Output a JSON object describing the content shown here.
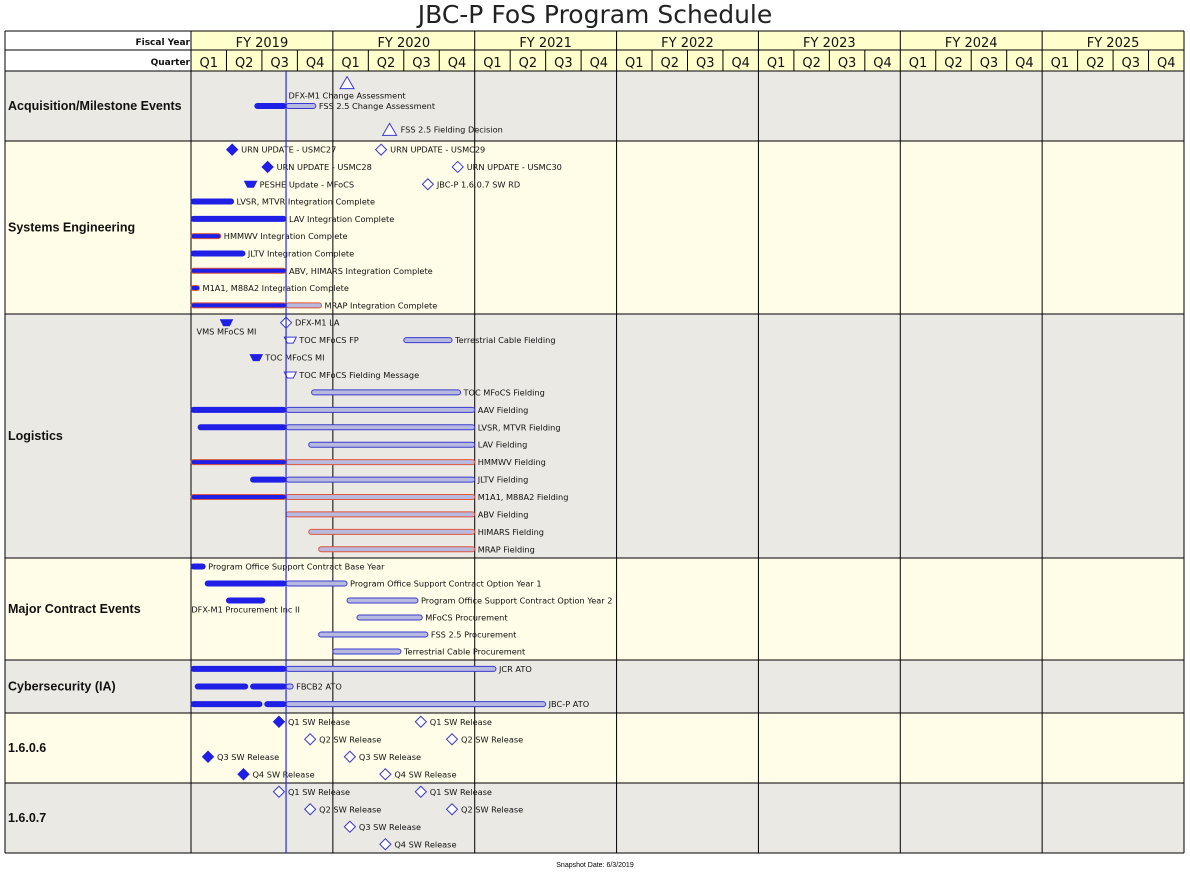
{
  "title": "JBC-P FoS Program Schedule",
  "header": {
    "fiscal_year_label": "Fiscal Year",
    "quarter_label": "Quarter",
    "fiscal_years": [
      "FY 2019",
      "FY 2020",
      "FY 2021",
      "FY 2022",
      "FY 2023",
      "FY 2024",
      "FY 2025"
    ],
    "quarters": [
      "Q1",
      "Q2",
      "Q3",
      "Q4"
    ]
  },
  "snapshot": "Snapshot Date: 6/3/2019",
  "colors": {
    "header_bg": "#ffffcc",
    "band_gray": "#ebe9e4",
    "band_cream": "#fffde8",
    "solid_blue": "#1f1fe6",
    "light_fill": "#b7b9df",
    "outline_blue": "#3a3ad0",
    "orange": "#e0563a",
    "today_line": "#2a2ad8"
  },
  "chart_data": {
    "type": "gantt",
    "time_axis": {
      "start": 2019.0,
      "end": 2026.0,
      "unit": "fiscal-year",
      "quarters_per_year": 4
    },
    "snapshot_date_fy": 2019.67,
    "sections": [
      {
        "name": "Acquisition/Milestone Events",
        "band": "gray",
        "rows": [
          {
            "label": "DFX-M1 Change Assessment",
            "items": [
              {
                "type": "tri-open",
                "at": 2020.1
              }
            ]
          },
          {
            "label": "FSS 2.5 Change Assessment",
            "items": [
              {
                "type": "bar",
                "segs": [
                  {
                    "from": 2019.45,
                    "to": 2019.67,
                    "style": "solid"
                  },
                  {
                    "from": 2019.67,
                    "to": 2019.88,
                    "style": "light"
                  }
                ]
              }
            ]
          },
          {
            "label": "FSS 2.5 Fielding Decision",
            "items": [
              {
                "type": "tri-open",
                "at": 2020.4
              }
            ]
          }
        ]
      },
      {
        "name": "Systems Engineering",
        "band": "cream",
        "rows": [
          {
            "items": [
              {
                "type": "diamond",
                "filled": true,
                "at": 2019.29,
                "label": "URN UPDATE - USMC27"
              },
              {
                "type": "diamond",
                "filled": false,
                "at": 2020.34,
                "label": "URN UPDATE - USMC29"
              }
            ]
          },
          {
            "items": [
              {
                "type": "diamond",
                "filled": true,
                "at": 2019.54,
                "label": "URN UPDATE - USMC28"
              },
              {
                "type": "diamond",
                "filled": false,
                "at": 2020.88,
                "label": "URN UPDATE - USMC30"
              }
            ]
          },
          {
            "items": [
              {
                "type": "trap",
                "filled": true,
                "at": 2019.42,
                "label": "PESHE Update - MFoCS"
              },
              {
                "type": "diamond",
                "filled": false,
                "at": 2020.67,
                "label": "JBC-P 1.6.0.7 SW RD"
              }
            ]
          },
          {
            "label": "LVSR, MTVR Integration Complete",
            "items": [
              {
                "type": "bar",
                "segs": [
                  {
                    "from": 2019.0,
                    "to": 2019.3,
                    "style": "solid"
                  }
                ]
              }
            ]
          },
          {
            "label": "LAV Integration Complete",
            "items": [
              {
                "type": "bar",
                "segs": [
                  {
                    "from": 2019.0,
                    "to": 2019.67,
                    "style": "solid"
                  }
                ]
              }
            ]
          },
          {
            "label": "HMMWV Integration Complete",
            "items": [
              {
                "type": "bar",
                "segs": [
                  {
                    "from": 2019.0,
                    "to": 2019.21,
                    "style": "solid-orange"
                  }
                ]
              }
            ]
          },
          {
            "label": "JLTV Integration Complete",
            "items": [
              {
                "type": "bar",
                "segs": [
                  {
                    "from": 2019.0,
                    "to": 2019.38,
                    "style": "solid"
                  }
                ]
              }
            ]
          },
          {
            "label": "ABV, HIMARS Integration Complete",
            "items": [
              {
                "type": "bar",
                "segs": [
                  {
                    "from": 2019.0,
                    "to": 2019.67,
                    "style": "solid-orange"
                  }
                ]
              }
            ]
          },
          {
            "label": "M1A1, M88A2 Integration Complete",
            "items": [
              {
                "type": "bar",
                "segs": [
                  {
                    "from": 2019.0,
                    "to": 2019.06,
                    "style": "solid-orange"
                  }
                ]
              }
            ]
          },
          {
            "label": "MRAP Integration Complete",
            "items": [
              {
                "type": "bar",
                "segs": [
                  {
                    "from": 2019.0,
                    "to": 2019.67,
                    "style": "solid-orange"
                  },
                  {
                    "from": 2019.67,
                    "to": 2019.92,
                    "style": "light-orange"
                  }
                ]
              }
            ]
          }
        ]
      },
      {
        "name": "Logistics",
        "band": "gray",
        "rows": [
          {
            "items": [
              {
                "type": "trap",
                "filled": true,
                "at": 2019.25,
                "label": "VMS MFoCS MI",
                "label_pos": "below"
              },
              {
                "type": "diamond",
                "filled": false,
                "at": 2019.67,
                "label": "DFX-M1 LA"
              }
            ]
          },
          {
            "items": [
              {
                "type": "trap",
                "filled": false,
                "at": 2019.7,
                "label": "TOC MFoCS FP"
              },
              {
                "type": "bar",
                "segs": [
                  {
                    "from": 2020.5,
                    "to": 2020.84,
                    "style": "light"
                  }
                ],
                "label": "Terrestrial Cable Fielding"
              }
            ]
          },
          {
            "items": [
              {
                "type": "trap",
                "filled": true,
                "at": 2019.46,
                "label": "TOC MFoCS MI"
              }
            ]
          },
          {
            "items": [
              {
                "type": "trap",
                "filled": false,
                "at": 2019.7,
                "label": "TOC MFoCS Fielding Message"
              }
            ]
          },
          {
            "label": "TOC MFoCS Fielding",
            "items": [
              {
                "type": "bar",
                "segs": [
                  {
                    "from": 2019.85,
                    "to": 2020.9,
                    "style": "light"
                  }
                ]
              }
            ]
          },
          {
            "label": "AAV Fielding",
            "items": [
              {
                "type": "bar",
                "segs": [
                  {
                    "from": 2019.0,
                    "to": 2019.67,
                    "style": "solid"
                  },
                  {
                    "from": 2019.67,
                    "to": 2021.0,
                    "style": "light"
                  }
                ]
              }
            ]
          },
          {
            "label": "LVSR, MTVR Fielding",
            "items": [
              {
                "type": "bar",
                "segs": [
                  {
                    "from": 2019.05,
                    "to": 2019.67,
                    "style": "solid"
                  },
                  {
                    "from": 2019.67,
                    "to": 2021.0,
                    "style": "light"
                  }
                ]
              }
            ]
          },
          {
            "label": "LAV Fielding",
            "items": [
              {
                "type": "bar",
                "segs": [
                  {
                    "from": 2019.83,
                    "to": 2021.0,
                    "style": "light"
                  }
                ]
              }
            ]
          },
          {
            "label": "HMMWV Fielding",
            "items": [
              {
                "type": "bar",
                "segs": [
                  {
                    "from": 2019.0,
                    "to": 2019.67,
                    "style": "solid-orange"
                  },
                  {
                    "from": 2019.67,
                    "to": 2021.0,
                    "style": "light-orange"
                  }
                ]
              }
            ]
          },
          {
            "label": "JLTV Fielding",
            "items": [
              {
                "type": "bar",
                "segs": [
                  {
                    "from": 2019.42,
                    "to": 2019.67,
                    "style": "solid"
                  },
                  {
                    "from": 2019.67,
                    "to": 2021.0,
                    "style": "light"
                  }
                ]
              }
            ]
          },
          {
            "label": "M1A1, M88A2 Fielding",
            "items": [
              {
                "type": "bar",
                "segs": [
                  {
                    "from": 2019.0,
                    "to": 2019.67,
                    "style": "solid-orange"
                  },
                  {
                    "from": 2019.67,
                    "to": 2021.0,
                    "style": "light-orange"
                  }
                ]
              }
            ]
          },
          {
            "label": "ABV Fielding",
            "items": [
              {
                "type": "bar",
                "segs": [
                  {
                    "from": 2019.67,
                    "to": 2021.0,
                    "style": "light-orange"
                  }
                ]
              }
            ]
          },
          {
            "label": "HIMARS Fielding",
            "items": [
              {
                "type": "bar",
                "segs": [
                  {
                    "from": 2019.83,
                    "to": 2021.0,
                    "style": "light-orange"
                  }
                ]
              }
            ]
          },
          {
            "label": "MRAP Fielding",
            "items": [
              {
                "type": "bar",
                "segs": [
                  {
                    "from": 2019.9,
                    "to": 2021.0,
                    "style": "light-orange"
                  }
                ]
              }
            ]
          }
        ]
      },
      {
        "name": "Major Contract Events",
        "band": "cream",
        "rows": [
          {
            "label": "Program Office Support Contract Base Year",
            "items": [
              {
                "type": "bar",
                "segs": [
                  {
                    "from": 2019.0,
                    "to": 2019.1,
                    "style": "solid"
                  }
                ]
              }
            ]
          },
          {
            "label": "Program Office Support Contract Option Year 1",
            "items": [
              {
                "type": "bar",
                "segs": [
                  {
                    "from": 2019.1,
                    "to": 2019.67,
                    "style": "solid"
                  },
                  {
                    "from": 2019.67,
                    "to": 2020.1,
                    "style": "light"
                  }
                ]
              }
            ]
          },
          {
            "items": [
              {
                "type": "bar",
                "segs": [
                  {
                    "from": 2019.25,
                    "to": 2019.52,
                    "style": "solid"
                  }
                ],
                "label": "DFX-M1 Procurement Inc II",
                "label_pos": "below"
              },
              {
                "type": "bar",
                "segs": [
                  {
                    "from": 2020.1,
                    "to": 2020.6,
                    "style": "light"
                  }
                ],
                "label": "Program Office Support Contract Option Year 2"
              }
            ]
          },
          {
            "label": "MFoCS Procurement",
            "items": [
              {
                "type": "bar",
                "segs": [
                  {
                    "from": 2020.17,
                    "to": 2020.63,
                    "style": "light"
                  }
                ]
              }
            ]
          },
          {
            "label": "FSS 2.5 Procurement",
            "items": [
              {
                "type": "bar",
                "segs": [
                  {
                    "from": 2019.9,
                    "to": 2020.67,
                    "style": "light"
                  }
                ]
              }
            ]
          },
          {
            "label": "Terrestrial Cable Procurement",
            "items": [
              {
                "type": "bar",
                "segs": [
                  {
                    "from": 2020.0,
                    "to": 2020.48,
                    "style": "light"
                  }
                ]
              }
            ]
          }
        ]
      },
      {
        "name": "Cybersecurity (IA)",
        "band": "gray",
        "rows": [
          {
            "label": "JCR ATO",
            "items": [
              {
                "type": "bar",
                "segs": [
                  {
                    "from": 2019.0,
                    "to": 2019.67,
                    "style": "solid"
                  },
                  {
                    "from": 2019.67,
                    "to": 2021.15,
                    "style": "light"
                  }
                ]
              }
            ]
          },
          {
            "label": "FBCB2 ATO",
            "items": [
              {
                "type": "bar",
                "segs": [
                  {
                    "from": 2019.03,
                    "to": 2019.4,
                    "style": "solid"
                  },
                  {
                    "from": 2019.42,
                    "to": 2019.67,
                    "style": "solid"
                  },
                  {
                    "from": 2019.67,
                    "to": 2019.72,
                    "style": "light"
                  }
                ]
              }
            ]
          },
          {
            "label": "JBC-P ATO",
            "items": [
              {
                "type": "bar",
                "segs": [
                  {
                    "from": 2019.0,
                    "to": 2019.5,
                    "style": "solid"
                  },
                  {
                    "from": 2019.52,
                    "to": 2019.67,
                    "style": "solid"
                  },
                  {
                    "from": 2019.67,
                    "to": 2021.5,
                    "style": "light"
                  }
                ]
              }
            ]
          }
        ]
      },
      {
        "name": "1.6.0.6",
        "band": "cream",
        "rows": [
          {
            "items": [
              {
                "type": "diamond",
                "filled": true,
                "at": 2019.62,
                "label": "Q1 SW Release"
              },
              {
                "type": "diamond",
                "filled": false,
                "at": 2020.62,
                "label": "Q1 SW Release"
              }
            ]
          },
          {
            "items": [
              {
                "type": "diamond",
                "filled": false,
                "at": 2019.84,
                "label": "Q2 SW Release"
              },
              {
                "type": "diamond",
                "filled": false,
                "at": 2020.84,
                "label": "Q2 SW Release"
              }
            ]
          },
          {
            "items": [
              {
                "type": "diamond",
                "filled": true,
                "at": 2019.12,
                "label": "Q3 SW Release"
              },
              {
                "type": "diamond",
                "filled": false,
                "at": 2020.12,
                "label": "Q3 SW Release"
              }
            ]
          },
          {
            "items": [
              {
                "type": "diamond",
                "filled": true,
                "at": 2019.37,
                "label": "Q4 SW Release"
              },
              {
                "type": "diamond",
                "filled": false,
                "at": 2020.37,
                "label": "Q4 SW Release"
              }
            ]
          }
        ]
      },
      {
        "name": "1.6.0.7",
        "band": "gray",
        "rows": [
          {
            "items": [
              {
                "type": "diamond",
                "filled": false,
                "at": 2019.62,
                "label": "Q1 SW Release"
              },
              {
                "type": "diamond",
                "filled": false,
                "at": 2020.62,
                "label": "Q1 SW Release"
              }
            ]
          },
          {
            "items": [
              {
                "type": "diamond",
                "filled": false,
                "at": 2019.84,
                "label": "Q2 SW Release"
              },
              {
                "type": "diamond",
                "filled": false,
                "at": 2020.84,
                "label": "Q2 SW Release"
              }
            ]
          },
          {
            "items": [
              {
                "type": "diamond",
                "filled": false,
                "at": 2020.12,
                "label": "Q3 SW Release"
              }
            ]
          },
          {
            "items": [
              {
                "type": "diamond",
                "filled": false,
                "at": 2020.37,
                "label": "Q4 SW Release"
              }
            ]
          }
        ]
      }
    ]
  }
}
